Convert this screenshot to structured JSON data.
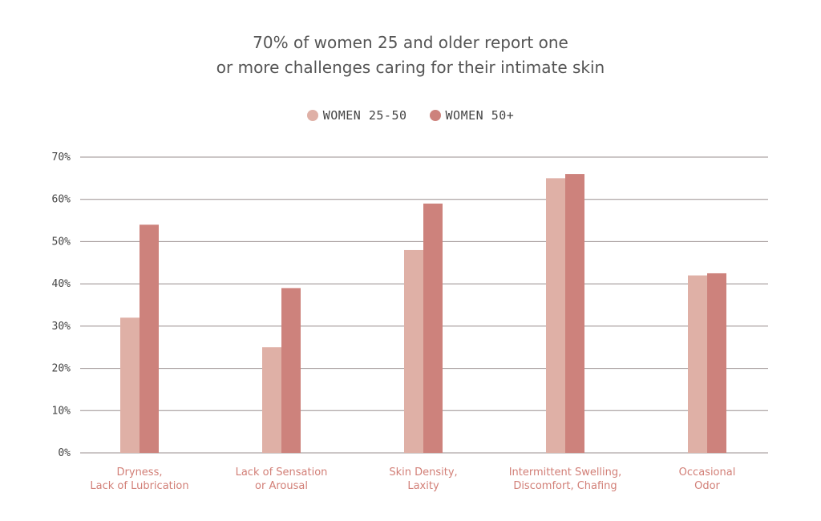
{
  "chart_data": {
    "type": "bar",
    "title_lines": [
      "70% of women 25 and older report one",
      "or more challenges caring for their intimate skin"
    ],
    "categories": [
      [
        "Dryness,",
        "Lack of Lubrication"
      ],
      [
        "Lack of Sensation",
        "or Arousal"
      ],
      [
        "Skin Density,",
        "Laxity"
      ],
      [
        "Intermittent Swelling,",
        "Discomfort, Chafing"
      ],
      [
        "Occasional",
        "Odor"
      ]
    ],
    "series": [
      {
        "name": "WOMEN 25-50",
        "color": "#dfb0a6",
        "values": [
          32,
          25,
          48,
          65,
          42
        ]
      },
      {
        "name": "WOMEN 50+",
        "color": "#cd827c",
        "values": [
          54,
          39,
          59,
          66,
          42.5
        ]
      }
    ],
    "yticks": [
      "0%",
      "10%",
      "20%",
      "30%",
      "40%",
      "50%",
      "60%",
      "70%"
    ],
    "ylim": [
      0,
      70
    ],
    "grid": true,
    "legend_position": "top-center",
    "colors": {
      "gridline": "#9a8f8f",
      "category_label": "#d27f77",
      "title": "#555555"
    }
  }
}
